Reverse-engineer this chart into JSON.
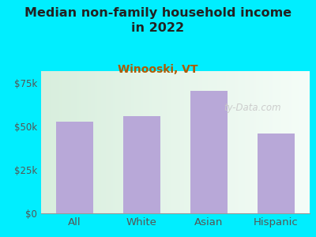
{
  "title": "Median non-family household income\nin 2022",
  "subtitle": "Winooski, VT",
  "categories": [
    "All",
    "White",
    "Asian",
    "Hispanic"
  ],
  "values": [
    53000,
    56000,
    70500,
    46000
  ],
  "bar_color": "#b8a8d8",
  "title_fontsize": 11.5,
  "subtitle_fontsize": 10,
  "subtitle_color": "#b05a00",
  "title_color": "#222222",
  "bg_color": "#00eeff",
  "yticks": [
    0,
    25000,
    50000,
    75000
  ],
  "ytick_labels": [
    "$0",
    "$25k",
    "$50k",
    "$75k"
  ],
  "ylim": [
    0,
    82000
  ],
  "watermark": "ty-Data.com",
  "tick_color": "#555555",
  "plot_left_color": "#d8eedd",
  "plot_right_color": "#f5fdf8"
}
